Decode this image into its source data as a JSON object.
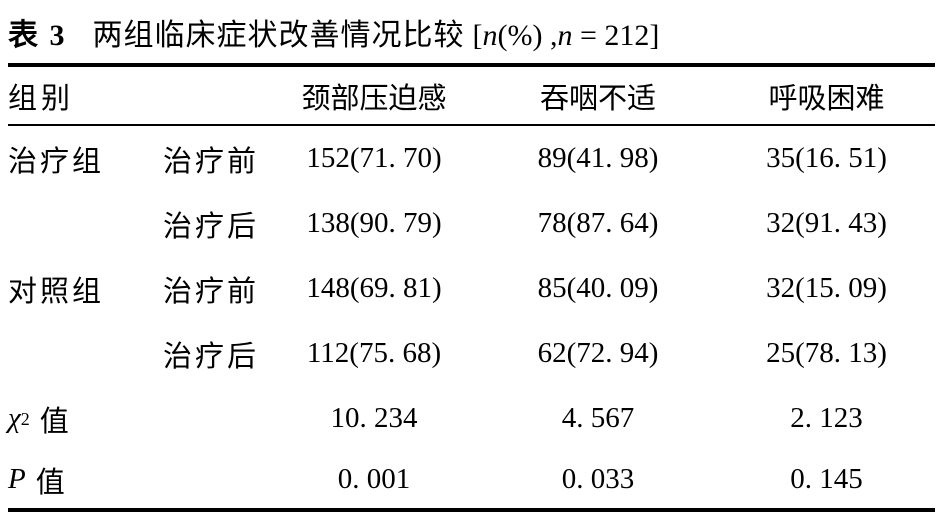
{
  "title": {
    "table_label": "表 3",
    "caption": "两组临床症状改善情况比较",
    "note": {
      "open": "[",
      "var1": "n",
      "mid": "(%) ,",
      "var2": "n",
      "eq": " = 212",
      "close": "]"
    }
  },
  "table": {
    "headers": {
      "group": "组别",
      "neck": "颈部压迫感",
      "swallow": "吞咽不适",
      "breath": "呼吸困难"
    },
    "rows": [
      {
        "group": "治疗组",
        "phase": "治疗前",
        "neck": "152(71. 70)",
        "swallow": "89(41. 98)",
        "breath": "35(16. 51)"
      },
      {
        "group": "",
        "phase": "治疗后",
        "neck": "138(90. 79)",
        "swallow": "78(87. 64)",
        "breath": "32(91. 43)"
      },
      {
        "group": "对照组",
        "phase": "治疗前",
        "neck": "148(69. 81)",
        "swallow": "85(40. 09)",
        "breath": "32(15. 09)"
      },
      {
        "group": "",
        "phase": "治疗后",
        "neck": "112(75. 68)",
        "swallow": "62(72. 94)",
        "breath": "25(78. 13)"
      }
    ],
    "stats": [
      {
        "symbol": "χ",
        "sup": "2",
        "suffix": "值",
        "neck": "10. 234",
        "swallow": "4. 567",
        "breath": "2. 123"
      },
      {
        "symbol": "P",
        "suffix": "值",
        "neck": "0. 001",
        "swallow": "0. 033",
        "breath": "0. 145"
      }
    ]
  },
  "colors": {
    "text": "#000000",
    "background": "#ffffff",
    "rule": "#000000"
  }
}
